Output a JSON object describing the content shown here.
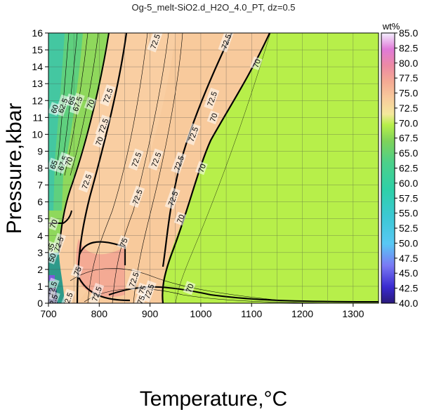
{
  "chart_data": {
    "type": "heatmap",
    "title": "Og-5_melt-SiO2.d_H2O_4.0_PT, dz=0.5",
    "xlabel": "Temperature,°C",
    "ylabel": "Pressure,kbar",
    "xlim": [
      700,
      1350
    ],
    "ylim": [
      0,
      16
    ],
    "x_ticks": [
      700,
      800,
      900,
      1000,
      1100,
      1200,
      1300
    ],
    "y_ticks": [
      0,
      1,
      2,
      3,
      4,
      5,
      6,
      7,
      8,
      9,
      10,
      11,
      12,
      13,
      14,
      15,
      16
    ],
    "grid": true,
    "colorbar": {
      "title": "wt%",
      "min": 40.0,
      "max": 85.0,
      "ticks": [
        "85.0",
        "82.5",
        "80.0",
        "77.5",
        "75.0",
        "72.5",
        "70.0",
        "67.5",
        "65.0",
        "62.5",
        "60.0",
        "57.5",
        "55.0",
        "52.5",
        "50.0",
        "47.5",
        "45.0",
        "42.5",
        "40.0"
      ],
      "placement": "right"
    },
    "regions": [
      {
        "level": "70.0-72.5",
        "color": "#b7ef4a",
        "area": "T above ~1000-1150 °C, all pressures"
      },
      {
        "level": "72.5-75.0",
        "color": "#f8ca9c",
        "area": "central band 760-1000 °C"
      },
      {
        "level": "75.0-77.5",
        "color": "#f4aa94",
        "area": "low-P pocket 760-860 °C, 0.5-4.5 kbar"
      },
      {
        "level": "<67.5",
        "color": "#4cd08a",
        "area": "T below ~760 °C"
      }
    ],
    "contour_labels": [
      {
        "text": "72.5",
        "T": 910,
        "P": 15.5
      },
      {
        "text": "72.5",
        "T": 1050,
        "P": 15.5
      },
      {
        "text": "70",
        "T": 1110,
        "P": 14.2
      },
      {
        "text": "72.5",
        "T": 817,
        "P": 12.3
      },
      {
        "text": "70",
        "T": 783,
        "P": 11.8
      },
      {
        "text": "67.5",
        "T": 757,
        "P": 11.8
      },
      {
        "text": "65",
        "T": 745,
        "P": 12.0
      },
      {
        "text": "62.5",
        "T": 728,
        "P": 11.7
      },
      {
        "text": "60",
        "T": 712,
        "P": 11.5
      },
      {
        "text": "72.5",
        "T": 1022,
        "P": 12.1
      },
      {
        "text": "70",
        "T": 1025,
        "P": 11.0
      },
      {
        "text": "72.5",
        "T": 808,
        "P": 10.5
      },
      {
        "text": "72.5",
        "T": 985,
        "P": 10.0
      },
      {
        "text": "70",
        "T": 800,
        "P": 9.6
      },
      {
        "text": "72.5",
        "T": 873,
        "P": 8.5
      },
      {
        "text": "72.5",
        "T": 912,
        "P": 8.5
      },
      {
        "text": "72.5",
        "T": 957,
        "P": 8.3
      },
      {
        "text": "70",
        "T": 1002,
        "P": 8.0
      },
      {
        "text": "65",
        "T": 710,
        "P": 8.2
      },
      {
        "text": "67.5",
        "T": 728,
        "P": 8.3
      },
      {
        "text": "70",
        "T": 740,
        "P": 8.4
      },
      {
        "text": "72.5",
        "T": 775,
        "P": 7.2
      },
      {
        "text": "72.5",
        "T": 945,
        "P": 6.2
      },
      {
        "text": "72.5",
        "T": 875,
        "P": 6.3
      },
      {
        "text": "70",
        "T": 960,
        "P": 5.0
      },
      {
        "text": "70",
        "T": 710,
        "P": 4.7
      },
      {
        "text": "72.5",
        "T": 720,
        "P": 3.5
      },
      {
        "text": "75",
        "T": 848,
        "P": 3.6
      },
      {
        "text": "75",
        "T": 757,
        "P": 1.9
      },
      {
        "text": "72.5",
        "T": 868,
        "P": 1.4
      },
      {
        "text": "75",
        "T": 885,
        "P": 0.8
      },
      {
        "text": "72.5",
        "T": 898,
        "P": 0.7
      },
      {
        "text": "70",
        "T": 978,
        "P": 0.9
      },
      {
        "text": "72.5",
        "T": 795,
        "P": 0.55
      },
      {
        "text": "75",
        "T": 882,
        "P": 0.2
      },
      {
        "text": "72.5",
        "T": 738,
        "P": 0.2
      },
      {
        "text": "12.5",
        "T": 707,
        "P": 0.85
      },
      {
        "text": "35",
        "T": 704,
        "P": 3.3
      },
      {
        "text": "50",
        "T": 707,
        "P": 2.7
      },
      {
        "text": "2.5",
        "T": 710,
        "P": 0.2
      }
    ]
  },
  "colors": {
    "green_70": "#b7ef4a",
    "peach_72_5": "#f8ca9c",
    "salmon_75": "#f4aa94",
    "green_low": "#4cd08a",
    "teal_low": "#44c7a1"
  }
}
